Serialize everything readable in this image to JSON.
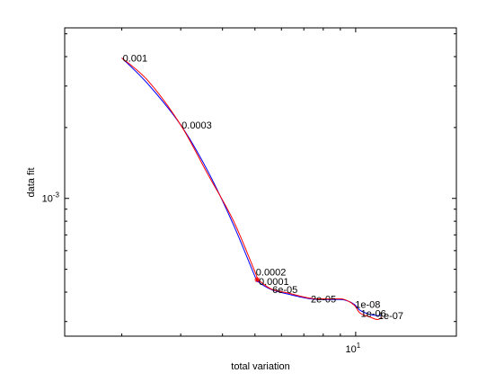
{
  "chart_data": {
    "type": "line",
    "xlabel": "total variation",
    "ylabel": "data fit",
    "x_scale": "log",
    "y_scale": "log",
    "xlim": [
      1.35,
      20
    ],
    "ylim": [
      0.00026,
      0.0053
    ],
    "grid": false,
    "x_ticks": [
      {
        "value": 10,
        "base": "10",
        "exp": "1"
      }
    ],
    "y_ticks": [
      {
        "value": 0.001,
        "base": "10",
        "exp": "-3"
      }
    ],
    "series": [
      {
        "color": "#0000ff",
        "x": [
          2.0,
          2.4,
          3.0,
          3.6,
          4.3,
          5.0,
          5.1,
          5.6,
          6.3,
          7.3,
          8.3,
          9.2,
          9.9,
          10.3,
          11.0,
          11.6,
          12.0
        ],
        "y": [
          0.00395,
          0.00305,
          0.00205,
          0.00132,
          0.00078,
          0.000466,
          0.000444,
          0.00041,
          0.000392,
          0.000375,
          0.000372,
          0.000371,
          0.000355,
          0.000335,
          0.000322,
          0.000318,
          0.00032
        ]
      },
      {
        "color": "#ff0000",
        "x": [
          2.0,
          2.4,
          3.0,
          3.6,
          4.3,
          5.0,
          5.1,
          5.6,
          6.3,
          7.3,
          8.3,
          9.2,
          9.9,
          10.3,
          11.0,
          11.6,
          12.0
        ],
        "y": [
          0.00395,
          0.00315,
          0.00205,
          0.00128,
          0.00081,
          0.000488,
          0.000454,
          0.000412,
          0.000396,
          0.000377,
          0.000374,
          0.000373,
          0.000352,
          0.000326,
          0.000314,
          0.000306,
          0.000312
        ]
      }
    ],
    "marker": {
      "symbol": "*",
      "color": "#ff0000",
      "x": 5.08,
      "y": 0.000452
    },
    "annotations": [
      {
        "text": "0.001",
        "x": 2.0,
        "y": 0.00395
      },
      {
        "text": "0.0003",
        "x": 3.0,
        "y": 0.00205
      },
      {
        "text": "0.0002",
        "x": 5.0,
        "y": 0.000488
      },
      {
        "text": "0.0001",
        "x": 5.1,
        "y": 0.000444
      },
      {
        "text": "6e-05",
        "x": 5.6,
        "y": 0.00041
      },
      {
        "text": "2e-05",
        "x": 7.3,
        "y": 0.000375
      },
      {
        "text": "1e-08",
        "x": 9.9,
        "y": 0.000355
      },
      {
        "text": "1e-06",
        "x": 10.3,
        "y": 0.000325
      },
      {
        "text": "1e-07",
        "x": 11.6,
        "y": 0.000318
      }
    ]
  }
}
